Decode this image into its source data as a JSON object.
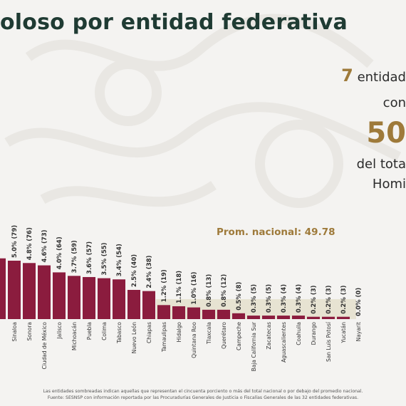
{
  "header": {
    "title": "oloso por entidad federativa"
  },
  "side_panel": {
    "count": "7",
    "line1_rest": "entidad",
    "line2": "con",
    "big_value": "50",
    "line3": "del tota",
    "line4": "Homi"
  },
  "chart_data": {
    "type": "bar",
    "ylim": [
      0,
      6
    ],
    "average_label": "Prom. nacional: 49.78",
    "average_value": 1.0,
    "categories": [
      "",
      "Sinaloa",
      "Sonora",
      "Ciudad de México",
      "Jalisco",
      "Michoacán",
      "Puebla",
      "Colima",
      "Tabasco",
      "Nuevo León",
      "Chiapas",
      "Tamaulipas",
      "Hidalgo",
      "Quintana Roo",
      "Tlaxcala",
      "Querétaro",
      "Campeche",
      "Baja California Sur",
      "Zacatecas",
      "Aguascalientes",
      "Coahuila",
      "Durango",
      "San Luis Potosí",
      "Yucatán",
      "Nayarit"
    ],
    "values": [
      5.2,
      5.0,
      4.8,
      4.6,
      4.0,
      3.7,
      3.6,
      3.5,
      3.4,
      2.5,
      2.4,
      1.2,
      1.1,
      1.0,
      0.8,
      0.8,
      0.5,
      0.3,
      0.3,
      0.3,
      0.3,
      0.2,
      0.2,
      0.2,
      0.0
    ],
    "labels": [
      "",
      "5.0% (79)",
      "4.8% (76)",
      "4.6% (73)",
      "4.0% (64)",
      "3.7% (59)",
      "3.6% (57)",
      "3.5% (55)",
      "3.4% (54)",
      "2.5% (40)",
      "2.4% (38)",
      "1.2% (19)",
      "1.1% (18)",
      "1.0% (16)",
      "0.8% (13)",
      "0.8% (12)",
      "0.5% (8)",
      "0.3% (5)",
      "0.3% (5)",
      "0.3% (4)",
      "0.3% (4)",
      "0.2% (3)",
      "0.2% (3)",
      "0.2% (3)",
      "0.0% (0)"
    ],
    "colors": {
      "bar": "#8b1c3e",
      "band": "#e7e3d2",
      "label": "#333333",
      "average": "#9e7a3a"
    }
  },
  "footnote": {
    "line1": "Las entidades sombreadas indican aquellas que representan el cincuenta porciento o más del total nacional o por debajo del promedio nacional.",
    "line2": "Fuente: SESNSP con información reportada por las Procuradurías Generales de Justicia o Fiscalías Generales de las 32 entidades federativas."
  }
}
